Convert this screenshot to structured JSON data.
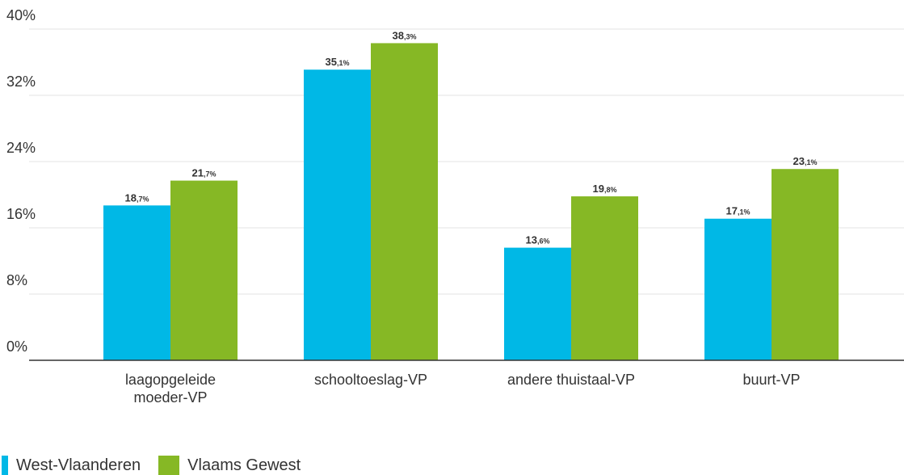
{
  "chart_data": {
    "type": "bar",
    "categories": [
      [
        "laagopgeleide",
        "moeder-VP"
      ],
      [
        "schooltoeslag-VP"
      ],
      [
        "andere thuistaal-VP"
      ],
      [
        "buurt-VP"
      ]
    ],
    "series": [
      {
        "name": "West-Vlaanderen",
        "color": "#00b8e6",
        "values": [
          18.7,
          35.1,
          13.6,
          17.1
        ],
        "labels": [
          [
            "18",
            ",7%"
          ],
          [
            "35",
            ",1%"
          ],
          [
            "13",
            ",6%"
          ],
          [
            "17",
            ",1%"
          ]
        ]
      },
      {
        "name": "Vlaams Gewest",
        "color": "#86b825",
        "values": [
          21.7,
          38.3,
          19.8,
          23.1
        ],
        "labels": [
          [
            "21",
            ",7%"
          ],
          [
            "38",
            ",3%"
          ],
          [
            "19",
            ",8%"
          ],
          [
            "23",
            ",1%"
          ]
        ]
      }
    ],
    "yticks": [
      "0%",
      "8%",
      "16%",
      "24%",
      "32%",
      "40%"
    ],
    "ylim": [
      0,
      40
    ],
    "grid": true,
    "legend": "bottom-left"
  }
}
